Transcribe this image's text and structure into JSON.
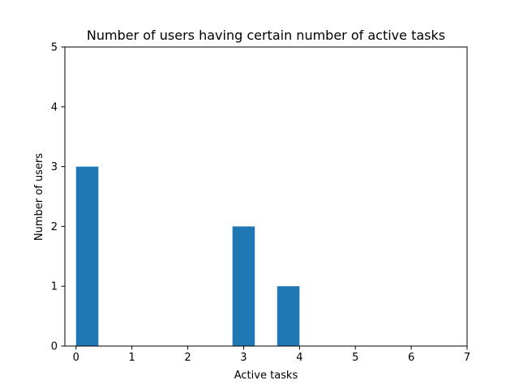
{
  "chart_data": {
    "type": "bar",
    "title": "Number of users having certain number of active tasks",
    "xlabel": "Active tasks",
    "ylabel": "Number of users",
    "bars": [
      {
        "x_start": 0.0,
        "x_end": 0.4,
        "value": 3
      },
      {
        "x_start": 2.8,
        "x_end": 3.2,
        "value": 2
      },
      {
        "x_start": 3.6,
        "x_end": 4.0,
        "value": 1
      }
    ],
    "xlim": [
      -0.2,
      7
    ],
    "ylim": [
      0,
      5
    ],
    "xticks": [
      "0",
      "1",
      "2",
      "3",
      "4",
      "5",
      "6",
      "7"
    ],
    "yticks": [
      "0",
      "1",
      "2",
      "3",
      "4",
      "5"
    ],
    "bar_color": "#1f77b4",
    "grid": false,
    "legend": false
  }
}
